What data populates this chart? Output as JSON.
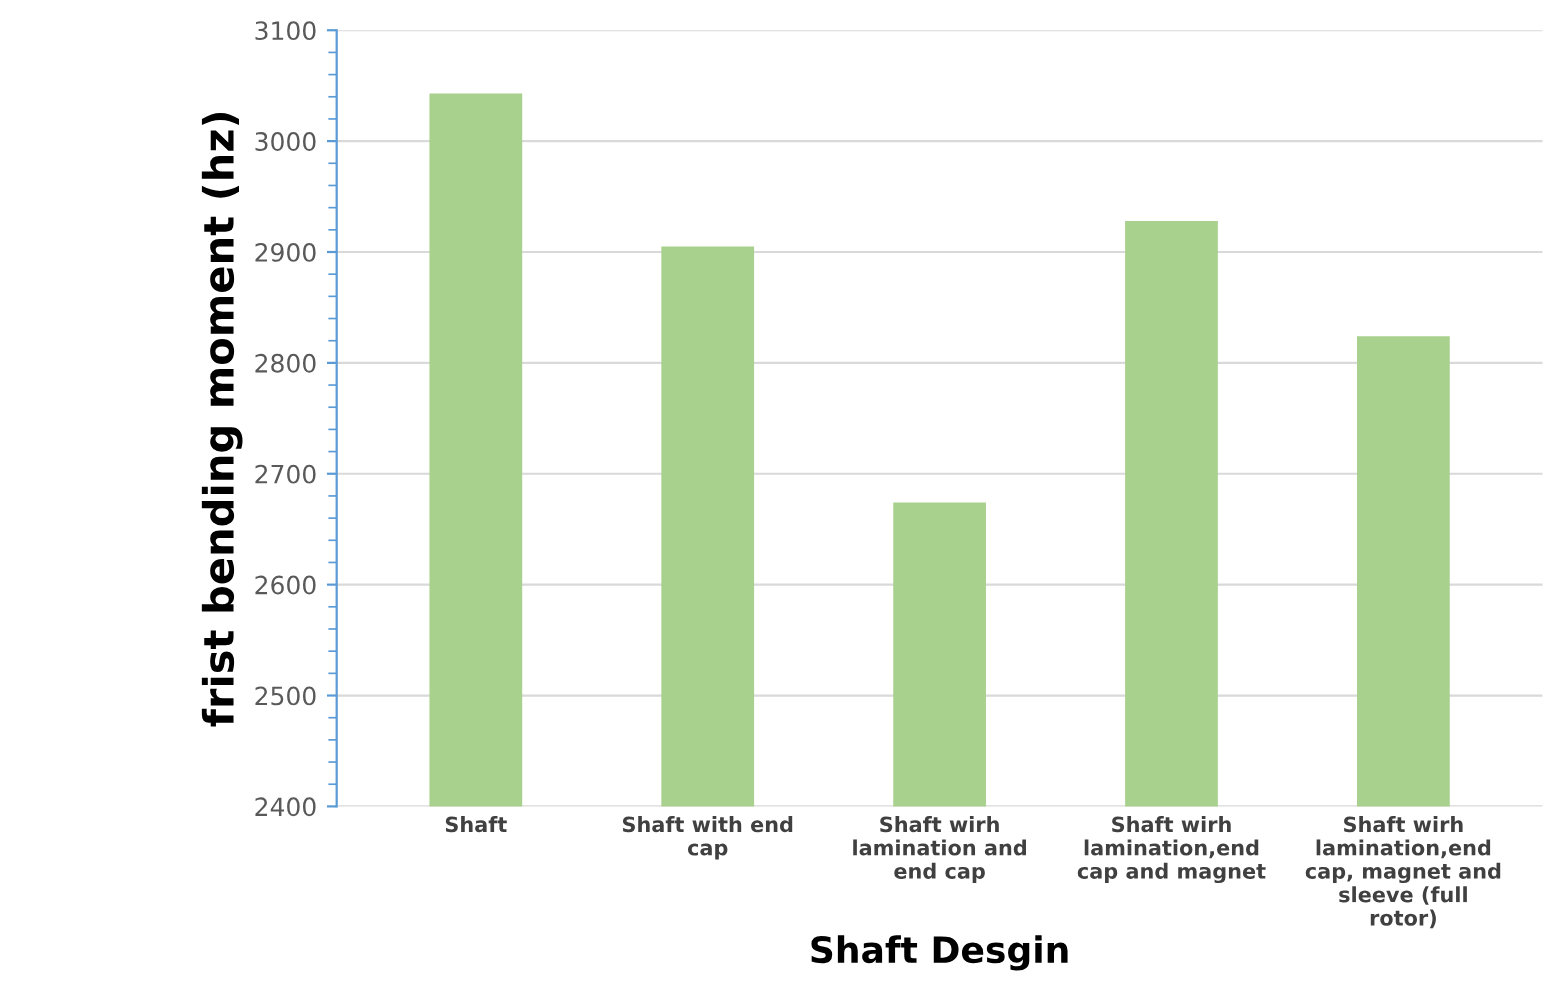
{
  "chart_data": {
    "type": "bar",
    "xlabel": "Shaft Desgin",
    "ylabel": "frist bending moment (hz)",
    "categories": [
      "Shaft",
      "Shaft with end cap",
      "Shaft wirh lamination and end cap",
      "Shaft wirh lamination,end cap and magnet",
      "Shaft wirh lamination,end cap, magnet and sleeve (full rotor)"
    ],
    "values": [
      3043,
      2905,
      2674,
      2928,
      2824
    ],
    "color": "#a9d18e",
    "ylim": [
      2400,
      3100
    ],
    "yticks": [
      2400,
      2500,
      2600,
      2700,
      2800,
      2900,
      3000,
      3100
    ],
    "grid": "y"
  }
}
